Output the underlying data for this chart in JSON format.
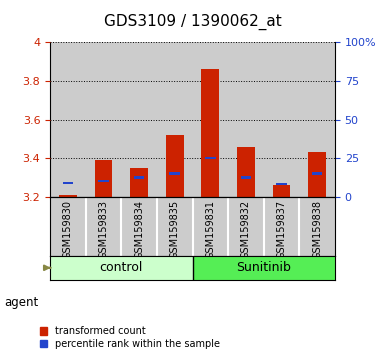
{
  "title": "GDS3109 / 1390062_at",
  "samples": [
    "GSM159830",
    "GSM159833",
    "GSM159834",
    "GSM159835",
    "GSM159831",
    "GSM159832",
    "GSM159837",
    "GSM159838"
  ],
  "group_labels": [
    "control",
    "Sunitinib"
  ],
  "group_colors": [
    "#ccffcc",
    "#55ee55"
  ],
  "red_values": [
    3.21,
    3.39,
    3.35,
    3.52,
    3.86,
    3.46,
    3.26,
    3.43
  ],
  "blue_values": [
    3.27,
    3.28,
    3.3,
    3.32,
    3.4,
    3.3,
    3.265,
    3.32
  ],
  "ylim_left": [
    3.2,
    4.0
  ],
  "ylim_right": [
    0,
    100
  ],
  "yticks_left": [
    3.2,
    3.4,
    3.6,
    3.8,
    4.0
  ],
  "ytick_labels_left": [
    "3.2",
    "3.4",
    "3.6",
    "3.8",
    "4"
  ],
  "yticks_right": [
    0,
    25,
    50,
    75,
    100
  ],
  "ytick_labels_right": [
    "0",
    "25",
    "50",
    "75",
    "100%"
  ],
  "red_color": "#cc2200",
  "blue_color": "#2244cc",
  "bar_width": 0.5,
  "base": 3.2,
  "agent_label": "agent",
  "legend_red": "transformed count",
  "legend_blue": "percentile rank within the sample",
  "col_bg": "#cccccc",
  "title_fontsize": 11,
  "tick_fontsize": 8,
  "sample_fontsize": 7
}
